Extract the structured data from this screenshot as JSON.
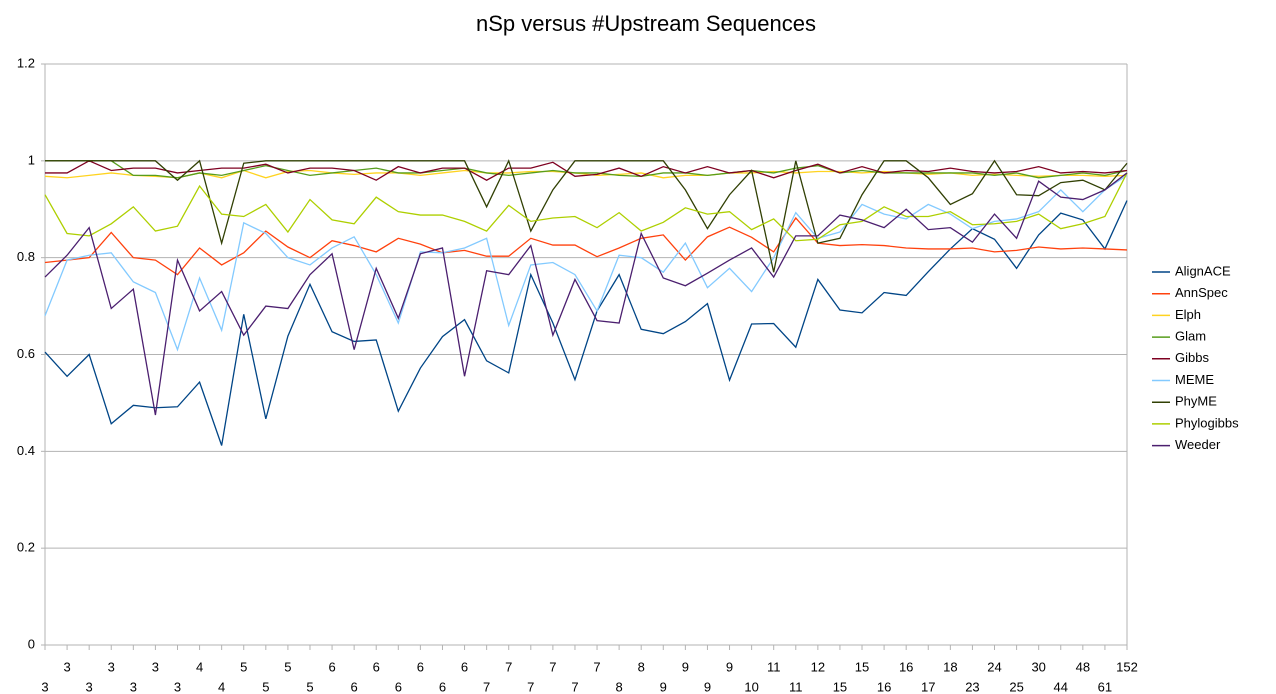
{
  "chart_data": {
    "type": "line",
    "title": "nSp versus #Upstream Sequences",
    "categories": [
      "3",
      "3",
      "3",
      "3",
      "3",
      "3",
      "3",
      "4",
      "4",
      "5",
      "5",
      "5",
      "5",
      "6",
      "6",
      "6",
      "6",
      "6",
      "6",
      "6",
      "7",
      "7",
      "7",
      "7",
      "7",
      "7",
      "8",
      "8",
      "9",
      "9",
      "9",
      "9",
      "10",
      "11",
      "11",
      "12",
      "15",
      "15",
      "16",
      "16",
      "17",
      "18",
      "23",
      "24",
      "25",
      "30",
      "44",
      "48",
      "61",
      "152"
    ],
    "ylim": [
      0,
      1.2
    ],
    "yticks": [
      0,
      0.2,
      0.4,
      0.6,
      0.8,
      1,
      1.2
    ],
    "grid": true,
    "legend": "right",
    "series": [
      {
        "name": "AlignACE",
        "color": "#004586",
        "values": [
          0.605,
          0.555,
          0.6,
          0.457,
          0.495,
          0.49,
          0.492,
          0.543,
          0.412,
          0.683,
          0.467,
          0.638,
          0.745,
          0.647,
          0.627,
          0.63,
          0.483,
          0.572,
          0.637,
          0.672,
          0.587,
          0.562,
          0.765,
          0.665,
          0.548,
          0.69,
          0.765,
          0.652,
          0.643,
          0.668,
          0.705,
          0.547,
          0.663,
          0.664,
          0.615,
          0.755,
          0.692,
          0.686,
          0.728,
          0.722,
          0.771,
          0.818,
          0.86,
          0.838,
          0.778,
          0.847,
          0.892,
          0.878,
          0.818,
          0.918
        ]
      },
      {
        "name": "AnnSpec",
        "color": "#ff420e",
        "values": [
          0.79,
          0.795,
          0.8,
          0.852,
          0.8,
          0.795,
          0.765,
          0.82,
          0.785,
          0.81,
          0.855,
          0.822,
          0.8,
          0.835,
          0.825,
          0.812,
          0.84,
          0.828,
          0.81,
          0.815,
          0.803,
          0.803,
          0.84,
          0.826,
          0.826,
          0.802,
          0.82,
          0.84,
          0.847,
          0.795,
          0.843,
          0.863,
          0.842,
          0.812,
          0.882,
          0.83,
          0.825,
          0.827,
          0.825,
          0.82,
          0.818,
          0.818,
          0.82,
          0.812,
          0.815,
          0.822,
          0.818,
          0.82,
          0.818,
          0.816
        ]
      },
      {
        "name": "Elph",
        "color": "#ffd320",
        "values": [
          0.968,
          0.965,
          0.97,
          0.975,
          0.97,
          0.968,
          0.965,
          0.975,
          0.965,
          0.98,
          0.965,
          0.978,
          0.98,
          0.975,
          0.972,
          0.975,
          0.975,
          0.97,
          0.975,
          0.98,
          0.975,
          0.975,
          0.978,
          0.978,
          0.975,
          0.97,
          0.972,
          0.975,
          0.965,
          0.97,
          0.97,
          0.975,
          0.975,
          0.978,
          0.975,
          0.978,
          0.978,
          0.975,
          0.978,
          0.975,
          0.972,
          0.975,
          0.97,
          0.972,
          0.97,
          0.968,
          0.97,
          0.97,
          0.968,
          0.97
        ]
      },
      {
        "name": "Glam",
        "color": "#579d1c",
        "values": [
          1,
          1,
          1,
          1,
          0.97,
          0.97,
          0.965,
          0.975,
          0.97,
          0.98,
          0.99,
          0.98,
          0.97,
          0.975,
          0.98,
          0.985,
          0.975,
          0.975,
          0.98,
          0.985,
          0.975,
          0.97,
          0.975,
          0.98,
          0.975,
          0.975,
          0.97,
          0.968,
          0.975,
          0.975,
          0.97,
          0.975,
          0.98,
          0.975,
          0.985,
          0.99,
          0.975,
          0.98,
          0.975,
          0.975,
          0.975,
          0.975,
          0.975,
          0.97,
          0.975,
          0.965,
          0.97,
          0.975,
          0.97,
          0.98
        ]
      },
      {
        "name": "Gibbs",
        "color": "#7e0021",
        "values": [
          0.975,
          0.975,
          1,
          0.98,
          0.985,
          0.985,
          0.975,
          0.98,
          0.985,
          0.985,
          0.993,
          0.975,
          0.985,
          0.985,
          0.98,
          0.96,
          0.988,
          0.975,
          0.985,
          0.985,
          0.96,
          0.985,
          0.985,
          0.997,
          0.968,
          0.972,
          0.985,
          0.968,
          0.988,
          0.975,
          0.988,
          0.975,
          0.98,
          0.965,
          0.98,
          0.993,
          0.975,
          0.988,
          0.975,
          0.98,
          0.978,
          0.985,
          0.978,
          0.975,
          0.978,
          0.988,
          0.975,
          0.978,
          0.975,
          0.98
        ]
      },
      {
        "name": "MEME",
        "color": "#83caff",
        "values": [
          0.68,
          0.795,
          0.805,
          0.81,
          0.75,
          0.728,
          0.61,
          0.758,
          0.65,
          0.872,
          0.85,
          0.8,
          0.785,
          0.82,
          0.843,
          0.765,
          0.665,
          0.812,
          0.81,
          0.82,
          0.84,
          0.66,
          0.785,
          0.79,
          0.765,
          0.69,
          0.805,
          0.8,
          0.77,
          0.83,
          0.738,
          0.778,
          0.73,
          0.8,
          0.893,
          0.84,
          0.853,
          0.91,
          0.89,
          0.88,
          0.91,
          0.89,
          0.86,
          0.875,
          0.88,
          0.895,
          0.94,
          0.895,
          0.94,
          0.97
        ]
      },
      {
        "name": "PhyME",
        "color": "#314004",
        "values": [
          1,
          1,
          1,
          1,
          1,
          1,
          0.96,
          1,
          0.83,
          0.995,
          1,
          1,
          1,
          1,
          1,
          1,
          1,
          1,
          1,
          1,
          0.905,
          1,
          0.855,
          0.94,
          1,
          1,
          1,
          1,
          1,
          0.94,
          0.86,
          0.93,
          0.98,
          0.77,
          1,
          0.83,
          0.84,
          0.93,
          1,
          1,
          0.965,
          0.91,
          0.932,
          1,
          0.93,
          0.928,
          0.955,
          0.96,
          0.94,
          0.995
        ]
      },
      {
        "name": "Phylogibbs",
        "color": "#aecf00",
        "values": [
          0.93,
          0.85,
          0.845,
          0.87,
          0.905,
          0.855,
          0.865,
          0.948,
          0.89,
          0.885,
          0.91,
          0.853,
          0.92,
          0.878,
          0.87,
          0.925,
          0.895,
          0.888,
          0.888,
          0.875,
          0.855,
          0.908,
          0.875,
          0.882,
          0.885,
          0.862,
          0.893,
          0.855,
          0.873,
          0.903,
          0.89,
          0.895,
          0.858,
          0.88,
          0.835,
          0.838,
          0.868,
          0.875,
          0.905,
          0.885,
          0.885,
          0.895,
          0.868,
          0.87,
          0.875,
          0.89,
          0.86,
          0.87,
          0.885,
          0.975
        ]
      },
      {
        "name": "Weeder",
        "color": "#4b1f6f",
        "values": [
          0.76,
          0.805,
          0.862,
          0.695,
          0.735,
          0.475,
          0.795,
          0.69,
          0.73,
          0.64,
          0.7,
          0.695,
          0.765,
          0.808,
          0.61,
          0.778,
          0.675,
          0.808,
          0.82,
          0.555,
          0.773,
          0.765,
          0.825,
          0.64,
          0.755,
          0.67,
          0.665,
          0.85,
          0.758,
          0.742,
          0.768,
          0.795,
          0.82,
          0.76,
          0.845,
          0.845,
          0.888,
          0.878,
          0.862,
          0.9,
          0.858,
          0.862,
          0.832,
          0.89,
          0.84,
          0.958,
          0.925,
          0.92,
          0.94,
          0.975
        ]
      }
    ]
  }
}
